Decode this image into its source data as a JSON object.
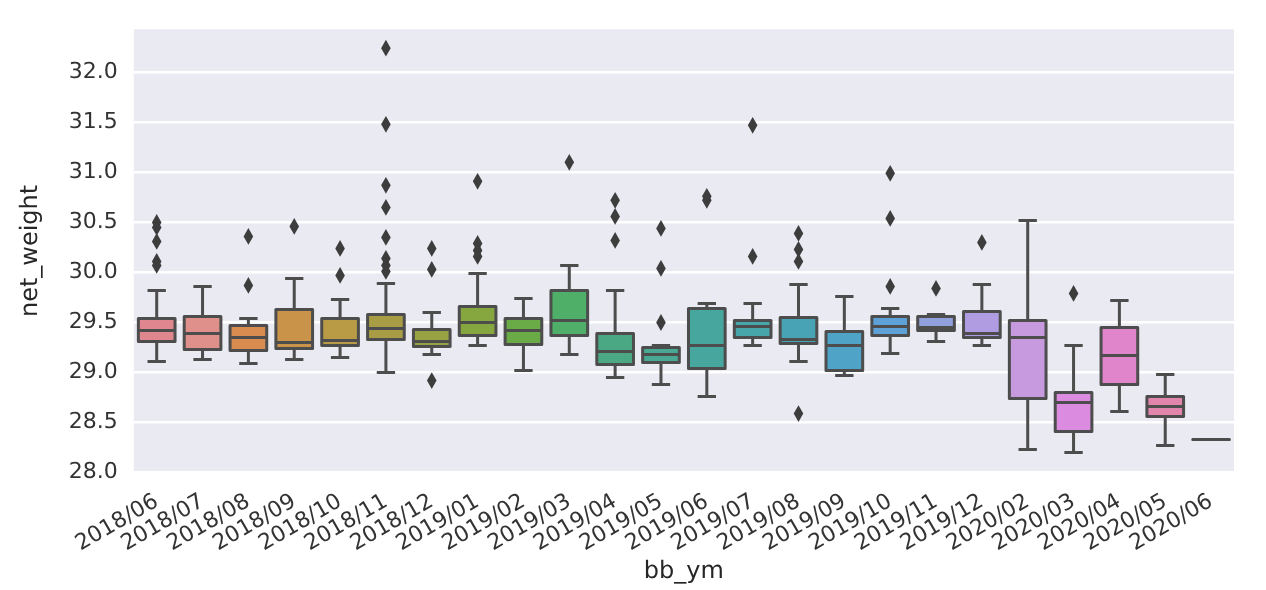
{
  "chart_data": {
    "type": "box",
    "xlabel": "bb_ym",
    "ylabel": "net_weight",
    "categories": [
      "2018/06",
      "2018/07",
      "2018/08",
      "2018/09",
      "2018/10",
      "2018/11",
      "2018/12",
      "2019/01",
      "2019/02",
      "2019/03",
      "2019/04",
      "2019/05",
      "2019/06",
      "2019/07",
      "2019/08",
      "2019/09",
      "2019/10",
      "2019/11",
      "2019/12",
      "2020/02",
      "2020/03",
      "2020/04",
      "2020/05",
      "2020/06"
    ],
    "colors": [
      "#e0868e",
      "#e0908a",
      "#d98c4f",
      "#c9944a",
      "#b99a45",
      "#a89d44",
      "#98a242",
      "#86a63f",
      "#6aab47",
      "#4fae68",
      "#4aa984",
      "#48a893",
      "#47a79f",
      "#46a6a9",
      "#48a4b5",
      "#4ea3c6",
      "#5ea1d6",
      "#8fa0dc",
      "#b09ce0",
      "#c79ae0",
      "#dc8ce0",
      "#e085cc",
      "#e185ad",
      "#4d4d4d"
    ],
    "boxes": [
      {
        "low": 29.11,
        "q1": 29.31,
        "median": 29.42,
        "q3": 29.54,
        "high": 29.82,
        "outliers": [
          30.5,
          30.45,
          30.31,
          30.11,
          30.07
        ]
      },
      {
        "low": 29.13,
        "q1": 29.23,
        "median": 29.39,
        "q3": 29.56,
        "high": 29.86
      },
      {
        "low": 29.09,
        "q1": 29.22,
        "median": 29.35,
        "q3": 29.47,
        "high": 29.54,
        "outliers": [
          30.36,
          29.87
        ]
      },
      {
        "low": 29.13,
        "q1": 29.24,
        "median": 29.3,
        "q3": 29.63,
        "high": 29.94,
        "outliers": [
          30.46
        ]
      },
      {
        "low": 29.15,
        "q1": 29.27,
        "median": 29.32,
        "q3": 29.54,
        "high": 29.73,
        "outliers": [
          30.24,
          29.97
        ]
      },
      {
        "low": 29.0,
        "q1": 29.33,
        "median": 29.44,
        "q3": 29.58,
        "high": 29.89,
        "outliers": [
          32.24,
          31.48,
          30.87,
          30.65,
          30.35,
          30.14,
          30.07,
          30.01
        ]
      },
      {
        "low": 29.18,
        "q1": 29.26,
        "median": 29.31,
        "q3": 29.43,
        "high": 29.6,
        "outliers": [
          28.92,
          30.24,
          30.03
        ]
      },
      {
        "low": 29.27,
        "q1": 29.37,
        "median": 29.5,
        "q3": 29.66,
        "high": 29.99,
        "outliers": [
          30.91,
          30.29,
          30.22,
          30.16
        ]
      },
      {
        "low": 29.02,
        "q1": 29.28,
        "median": 29.42,
        "q3": 29.54,
        "high": 29.74
      },
      {
        "low": 29.18,
        "q1": 29.37,
        "median": 29.52,
        "q3": 29.82,
        "high": 30.07,
        "outliers": [
          31.1
        ]
      },
      {
        "low": 28.95,
        "q1": 29.08,
        "median": 29.21,
        "q3": 29.39,
        "high": 29.82,
        "outliers": [
          30.72,
          30.56,
          30.32
        ]
      },
      {
        "low": 28.88,
        "q1": 29.1,
        "median": 29.18,
        "q3": 29.25,
        "high": 29.27,
        "outliers": [
          30.44,
          30.04,
          29.5
        ]
      },
      {
        "low": 28.76,
        "q1": 29.04,
        "median": 29.27,
        "q3": 29.64,
        "high": 29.69,
        "outliers": [
          30.76,
          30.72
        ]
      },
      {
        "low": 29.27,
        "q1": 29.35,
        "median": 29.46,
        "q3": 29.52,
        "high": 29.69,
        "outliers": [
          31.47,
          30.16
        ]
      },
      {
        "low": 29.11,
        "q1": 29.29,
        "median": 29.33,
        "q3": 29.55,
        "high": 29.88,
        "outliers": [
          28.59,
          30.39,
          30.23,
          30.11
        ]
      },
      {
        "low": 28.97,
        "q1": 29.02,
        "median": 29.27,
        "q3": 29.41,
        "high": 29.76
      },
      {
        "low": 29.19,
        "q1": 29.37,
        "median": 29.46,
        "q3": 29.56,
        "high": 29.64,
        "outliers": [
          30.99,
          30.54,
          29.86
        ]
      },
      {
        "low": 29.31,
        "q1": 29.42,
        "median": 29.45,
        "q3": 29.56,
        "high": 29.58,
        "outliers": [
          29.84
        ]
      },
      {
        "low": 29.27,
        "q1": 29.35,
        "median": 29.39,
        "q3": 29.61,
        "high": 29.88,
        "outliers": [
          30.3
        ]
      },
      {
        "low": 28.23,
        "q1": 28.74,
        "median": 29.35,
        "q3": 29.52,
        "high": 30.52
      },
      {
        "low": 28.2,
        "q1": 28.41,
        "median": 28.7,
        "q3": 28.8,
        "high": 29.27,
        "outliers": [
          29.79
        ]
      },
      {
        "low": 28.61,
        "q1": 28.88,
        "median": 29.17,
        "q3": 29.45,
        "high": 29.72
      },
      {
        "low": 28.27,
        "q1": 28.56,
        "median": 28.66,
        "q3": 28.76,
        "high": 28.98
      },
      {
        "low": 28.33,
        "q1": 28.33,
        "median": 28.33,
        "q3": 28.33,
        "high": 28.33
      }
    ],
    "ylim": [
      28.0,
      32.43
    ],
    "yticks": [
      {
        "value": 28,
        "label": "28.0"
      },
      {
        "value": 28.5,
        "label": "28.5"
      },
      {
        "value": 29,
        "label": "29.0"
      },
      {
        "value": 29.5,
        "label": "29.5"
      },
      {
        "value": 30,
        "label": "30.0"
      },
      {
        "value": 30.5,
        "label": "30.5"
      },
      {
        "value": 31,
        "label": "31.0"
      },
      {
        "value": 31.5,
        "label": "31.5"
      },
      {
        "value": 32,
        "label": "32.0"
      }
    ],
    "grid": "y",
    "marker": "diamond",
    "legend": false
  }
}
